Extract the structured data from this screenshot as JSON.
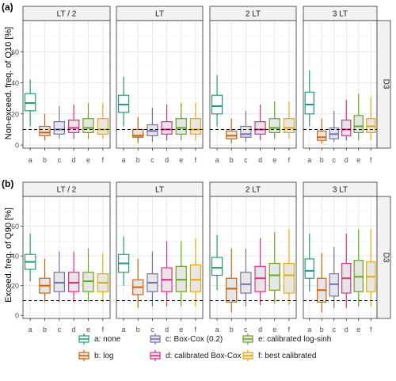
{
  "figure": {
    "panels": [
      {
        "label": "(a)",
        "ylabel": "Non-exceed. freq. of Q10 [%]",
        "strip_right": "D3"
      },
      {
        "label": "(b)",
        "ylabel": "Exceed. freq. of Q90 [%]",
        "strip_right": "D3"
      }
    ],
    "facets": [
      "LT / 2",
      "LT",
      "2 LT",
      "3 LT"
    ],
    "categories": [
      "a",
      "b",
      "c",
      "d",
      "e",
      "f"
    ],
    "legend": [
      {
        "key": "a",
        "label": "a: none",
        "color": "#1b9e77"
      },
      {
        "key": "b",
        "label": "b: log",
        "color": "#d95f02"
      },
      {
        "key": "c",
        "label": "c: Box-Cox (0.2)",
        "color": "#7570b3"
      },
      {
        "key": "d",
        "label": "d: calibrated Box-Cox",
        "color": "#e7298a"
      },
      {
        "key": "e",
        "label": "e: calibrated log-sinh",
        "color": "#66a61e"
      },
      {
        "key": "f",
        "label": "f: best calibrated",
        "color": "#e6ab02"
      }
    ],
    "colors": {
      "shaded_fill": "#e6e6e6",
      "strip_bg": "#f2f2f2"
    }
  },
  "chart_data": [
    {
      "type": "box",
      "panel": "(a)",
      "ylabel": "Non-exceed. freq. of Q10 [%]",
      "ylim": [
        -2,
        80
      ],
      "yticks": [
        0,
        20,
        40,
        60
      ],
      "reference_line": 10,
      "grid": true,
      "facets": [
        "LT / 2",
        "LT",
        "2 LT",
        "3 LT"
      ],
      "categories": [
        "a",
        "b",
        "c",
        "d",
        "e",
        "f"
      ],
      "shaded_categories": [
        "b",
        "c",
        "d",
        "e",
        "f"
      ],
      "boxes": {
        "LT / 2": [
          [
            12,
            22,
            27,
            33,
            42
          ],
          [
            3,
            6,
            8,
            12,
            20
          ],
          [
            4,
            7,
            10,
            15,
            25
          ],
          [
            4,
            8,
            11,
            16,
            26
          ],
          [
            4,
            8,
            11,
            17,
            27
          ],
          [
            4,
            7,
            10,
            17,
            27
          ]
        ],
        "LT": [
          [
            12,
            21,
            26,
            32,
            44
          ],
          [
            1,
            5,
            6,
            10,
            18
          ],
          [
            2,
            6,
            9,
            13,
            24
          ],
          [
            3,
            7,
            10,
            15,
            26
          ],
          [
            3,
            7,
            11,
            17,
            27
          ],
          [
            3,
            7,
            10,
            17,
            27
          ]
        ],
        "2 LT": [
          [
            12,
            20,
            25,
            32,
            45
          ],
          [
            1,
            4,
            6,
            9,
            17
          ],
          [
            2,
            5,
            7,
            12,
            22
          ],
          [
            3,
            7,
            10,
            15,
            26
          ],
          [
            4,
            8,
            11,
            17,
            28
          ],
          [
            4,
            8,
            11,
            17,
            28
          ]
        ],
        "3 LT": [
          [
            12,
            20,
            26,
            34,
            48
          ],
          [
            1,
            3,
            5,
            9,
            17
          ],
          [
            2,
            4,
            7,
            11,
            22
          ],
          [
            3,
            6,
            10,
            16,
            29
          ],
          [
            3,
            8,
            12,
            19,
            33
          ],
          [
            3,
            8,
            12,
            17,
            31
          ]
        ]
      }
    },
    {
      "type": "box",
      "panel": "(b)",
      "ylabel": "Exceed. freq. of Q90 [%]",
      "ylim": [
        -2,
        80
      ],
      "yticks": [
        0,
        20,
        40,
        60
      ],
      "reference_line": 10,
      "grid": true,
      "facets": [
        "LT / 2",
        "LT",
        "2 LT",
        "3 LT"
      ],
      "categories": [
        "a",
        "b",
        "c",
        "d",
        "e",
        "f"
      ],
      "shaded_categories": [
        "b",
        "c",
        "d",
        "e",
        "f"
      ],
      "boxes": {
        "LT / 2": [
          [
            23,
            31,
            36,
            41,
            55
          ],
          [
            9,
            15,
            20,
            25,
            38
          ],
          [
            9,
            16,
            22,
            29,
            43
          ],
          [
            9,
            16,
            22,
            29,
            43
          ],
          [
            9,
            16,
            23,
            29,
            45
          ],
          [
            9,
            16,
            22,
            28,
            42
          ]
        ],
        "LT": [
          [
            20,
            29,
            35,
            41,
            53
          ],
          [
            5,
            14,
            19,
            24,
            38
          ],
          [
            6,
            16,
            22,
            28,
            43
          ],
          [
            6,
            16,
            24,
            32,
            50
          ],
          [
            6,
            16,
            24,
            33,
            50
          ],
          [
            6,
            16,
            24,
            34,
            52
          ]
        ],
        "2 LT": [
          [
            17,
            27,
            32,
            39,
            54
          ],
          [
            2,
            9,
            18,
            25,
            45
          ],
          [
            6,
            15,
            21,
            29,
            45
          ],
          [
            7,
            16,
            25,
            33,
            52
          ],
          [
            8,
            17,
            27,
            35,
            56
          ],
          [
            7,
            15,
            27,
            35,
            58
          ]
        ],
        "3 LT": [
          [
            16,
            25,
            30,
            38,
            55
          ],
          [
            2,
            9,
            17,
            25,
            42
          ],
          [
            5,
            13,
            21,
            28,
            46
          ],
          [
            5,
            15,
            25,
            35,
            55
          ],
          [
            6,
            16,
            26,
            37,
            58
          ],
          [
            6,
            16,
            26,
            36,
            58
          ]
        ]
      }
    }
  ]
}
